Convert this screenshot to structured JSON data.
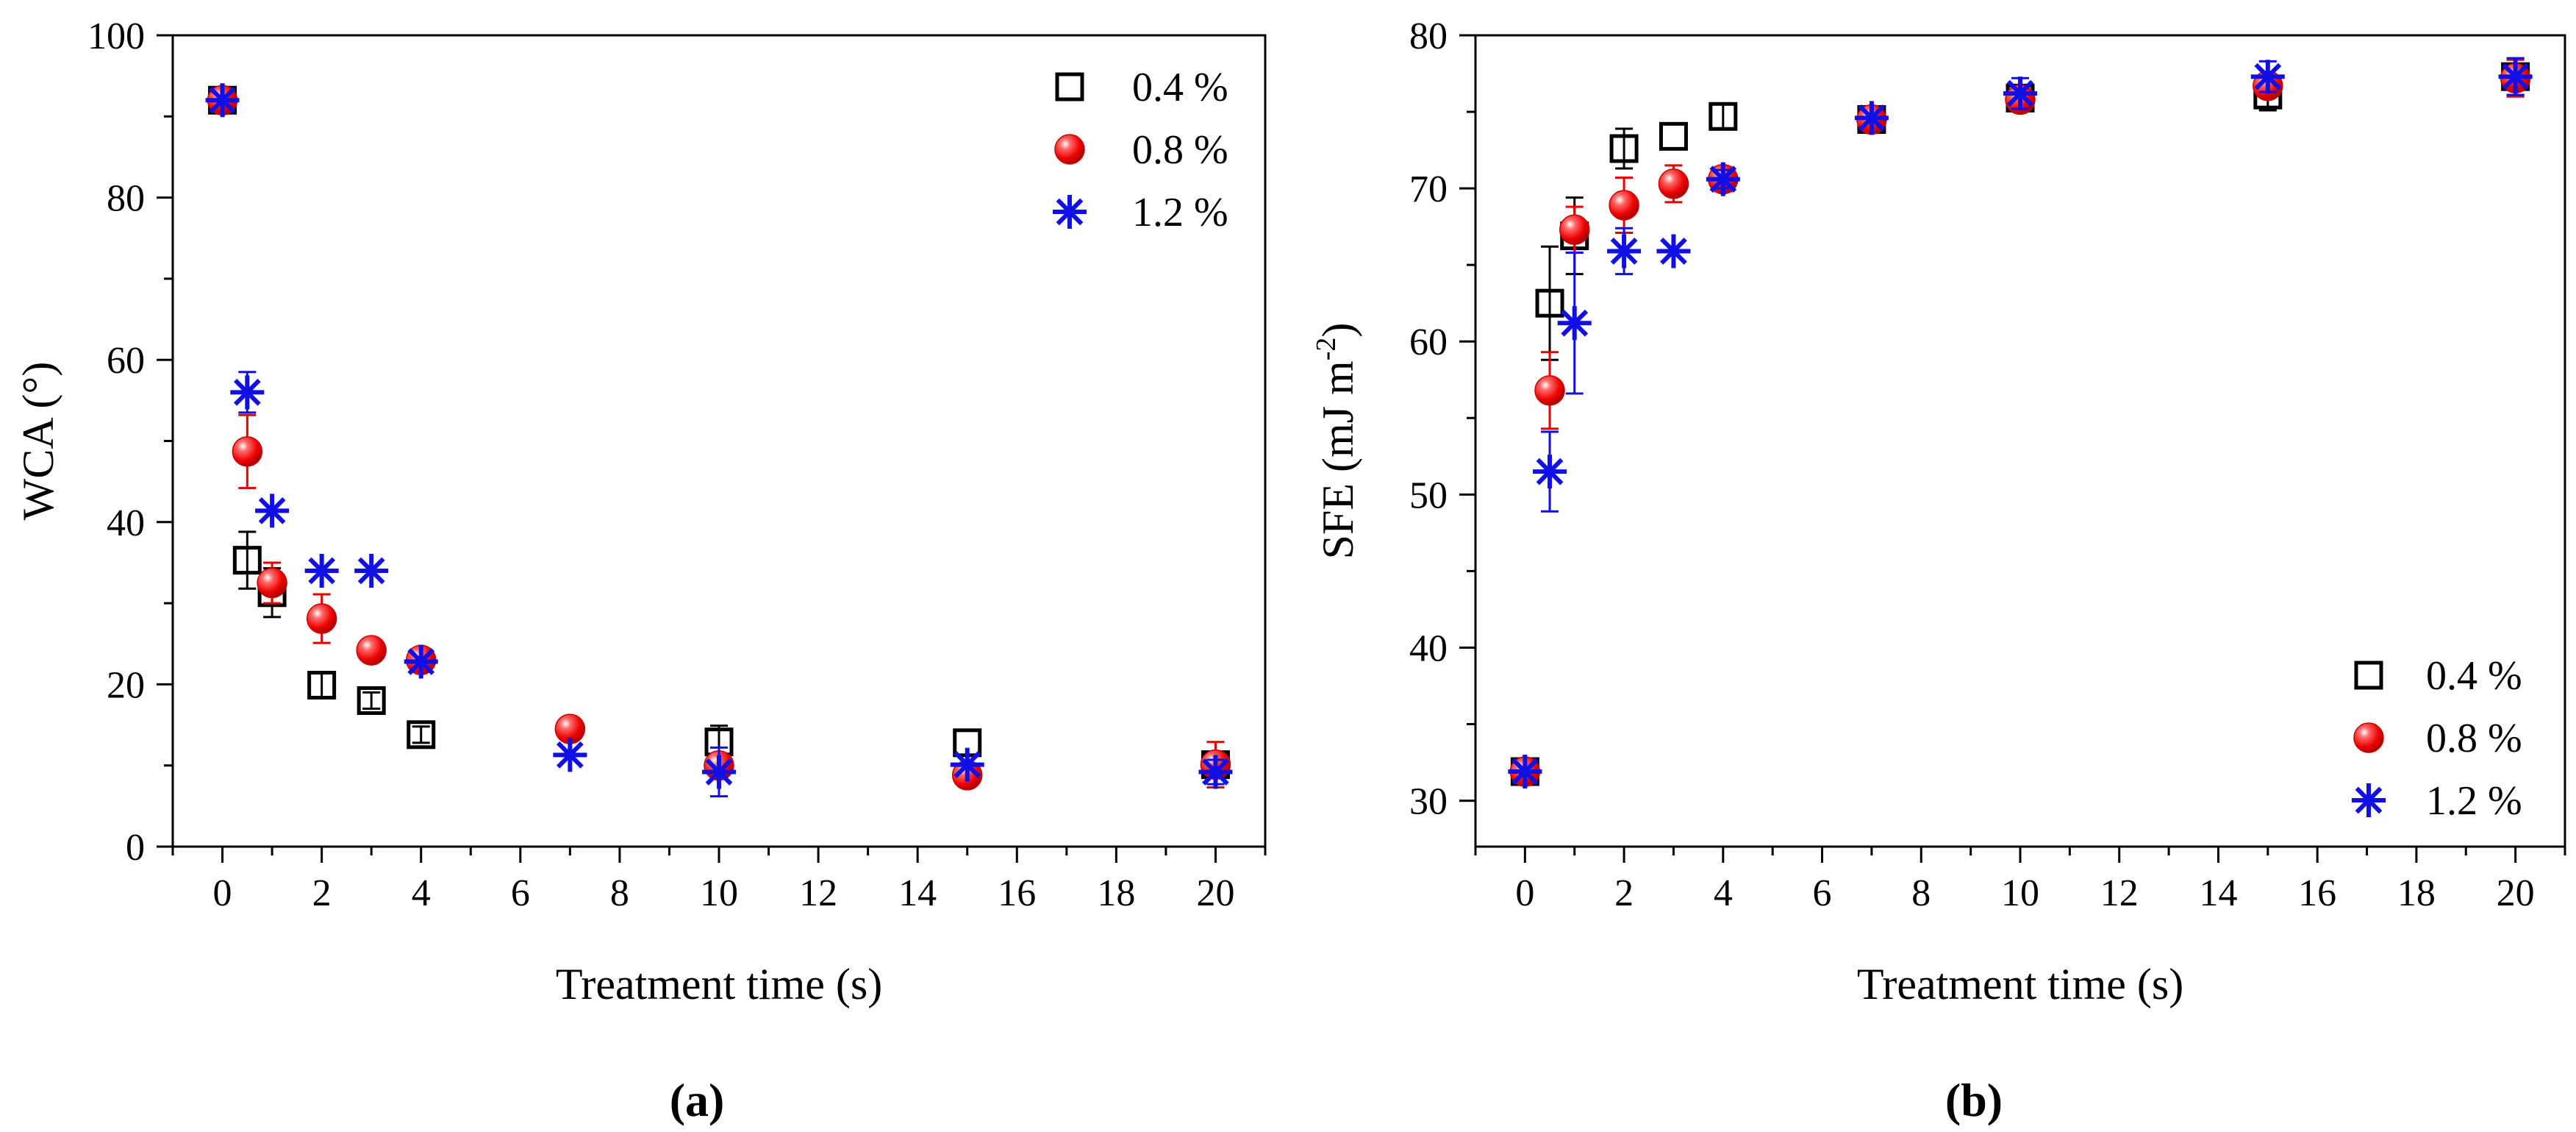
{
  "colors": {
    "s04": "#000000",
    "s08": "#ff0000",
    "s12": "#1010e6",
    "s08_err": "#e60000",
    "s12_err": "#1010e6"
  },
  "chart_data": [
    {
      "type": "scatter",
      "panel_label": "(a)",
      "xlabel": "Treatment time (s)",
      "ylabel": "WCA (°)",
      "xlim": [
        -1,
        21
      ],
      "ylim": [
        0,
        100
      ],
      "xticks": [
        0,
        2,
        4,
        6,
        8,
        10,
        12,
        14,
        16,
        18,
        20
      ],
      "yticks": [
        0,
        20,
        40,
        60,
        80,
        100
      ],
      "legend_position": "top-right",
      "series": [
        {
          "name": "0.4 %",
          "marker": "square-open",
          "color_key": "s04",
          "x": [
            0,
            0.5,
            1,
            2,
            3,
            4,
            10,
            15,
            20
          ],
          "y": [
            92,
            35.3,
            31.3,
            19.9,
            18,
            13.8,
            12.9,
            12.8,
            10.1
          ],
          "err": [
            0,
            3.5,
            3,
            1.5,
            1,
            1,
            2,
            0,
            0
          ]
        },
        {
          "name": "0.8 %",
          "marker": "sphere",
          "color_key": "s08",
          "x": [
            0,
            0.5,
            1,
            2,
            3,
            4,
            7,
            10,
            15,
            20
          ],
          "y": [
            92,
            48.7,
            32.5,
            28.1,
            24.2,
            23,
            14.5,
            10,
            8.8,
            10.1
          ],
          "err": [
            0,
            4.5,
            2.5,
            3,
            1,
            1,
            1,
            1,
            0,
            2.8
          ]
        },
        {
          "name": "1.2 %",
          "marker": "asterisk",
          "color_key": "s12",
          "x": [
            0,
            0.5,
            1,
            2,
            3,
            4,
            7,
            10,
            15,
            20
          ],
          "y": [
            92,
            56,
            41.4,
            34,
            34,
            22.8,
            11.3,
            9.2,
            10.1,
            9.2
          ],
          "err": [
            0,
            2.5,
            0,
            0,
            0,
            0,
            0,
            3,
            0,
            1.5
          ]
        }
      ]
    },
    {
      "type": "scatter",
      "panel_label": "(b)",
      "xlabel": "Treatment time (s)",
      "ylabel": "SFE (mJ m",
      "ylabel_sup": "-2",
      "ylabel_end": ")",
      "xlim": [
        -1,
        21
      ],
      "ylim": [
        27,
        80
      ],
      "xticks": [
        0,
        2,
        4,
        6,
        8,
        10,
        12,
        14,
        16,
        18,
        20
      ],
      "yticks": [
        30,
        40,
        50,
        60,
        70,
        80
      ],
      "legend_position": "bottom-right",
      "series": [
        {
          "name": "0.4 %",
          "marker": "square-open",
          "color_key": "s04",
          "x": [
            0,
            0.5,
            1,
            2,
            3,
            4,
            7,
            10,
            15,
            20
          ],
          "y": [
            31.9,
            62.5,
            66.9,
            72.6,
            73.4,
            74.7,
            74.5,
            75.9,
            76.1,
            77.3
          ],
          "err": [
            0,
            3.7,
            2.5,
            1.3,
            0,
            0.8,
            0,
            0,
            1,
            1.2
          ]
        },
        {
          "name": "0.8 %",
          "marker": "sphere",
          "color_key": "s08",
          "x": [
            0,
            0.5,
            1,
            2,
            3,
            4,
            7,
            10,
            15,
            20
          ],
          "y": [
            31.9,
            56.8,
            67.3,
            68.9,
            70.3,
            70.6,
            74.5,
            75.8,
            76.7,
            77.2
          ],
          "err": [
            0,
            2.5,
            1.5,
            1.8,
            1.2,
            0.8,
            0,
            0,
            0,
            1.2
          ]
        },
        {
          "name": "1.2 %",
          "marker": "asterisk",
          "color_key": "s12",
          "x": [
            0,
            0.5,
            1,
            2,
            3,
            4,
            7,
            10,
            15,
            20
          ],
          "y": [
            31.9,
            51.5,
            61.2,
            65.9,
            65.9,
            70.6,
            74.6,
            76.2,
            77.3,
            77.3
          ],
          "err": [
            0,
            2.6,
            4.6,
            1.5,
            0,
            0.6,
            0,
            1,
            1,
            1.2
          ]
        }
      ]
    }
  ]
}
